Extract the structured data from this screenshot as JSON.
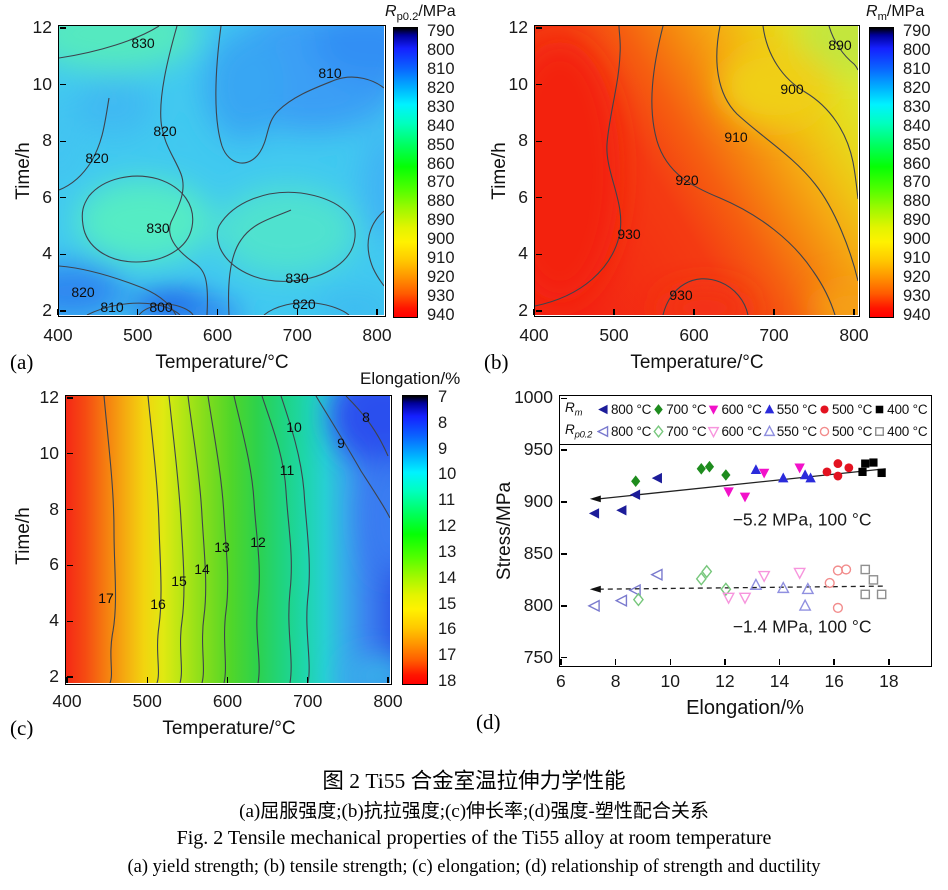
{
  "figure": {
    "caption_zh_title": "图 2  Ti55 合金室温拉伸力学性能",
    "caption_zh_sub": "(a)屈服强度;(b)抗拉强度;(c)伸长率;(d)强度-塑性配合关系",
    "caption_en_title": "Fig. 2  Tensile mechanical properties of the Ti55 alloy at room temperature",
    "caption_en_sub": "(a) yield strength; (b) tensile strength; (c) elongation; (d) relationship of strength and ductility"
  },
  "chart_data": [
    {
      "id": "a",
      "type": "heatmap",
      "panel_label": "(a)",
      "xlabel": "Temperature/°C",
      "ylabel": "Time/h",
      "colorbar_title": {
        "symbol": "R",
        "subscript": "p0.2",
        "unit": "/MPa"
      },
      "xlim": [
        400,
        800
      ],
      "ylim": [
        2,
        12
      ],
      "xticks": [
        400,
        500,
        600,
        700,
        800
      ],
      "yticks": [
        2,
        4,
        6,
        8,
        10,
        12
      ],
      "colorbar_ticks": [
        790,
        800,
        810,
        820,
        830,
        840,
        850,
        860,
        870,
        880,
        890,
        900,
        910,
        920,
        930,
        940
      ],
      "contour_labels": [
        {
          "v": "830",
          "x": 85,
          "y": 18
        },
        {
          "v": "810",
          "x": 272,
          "y": 48
        },
        {
          "v": "820",
          "x": 107,
          "y": 106
        },
        {
          "v": "820",
          "x": 39,
          "y": 133
        },
        {
          "v": "830",
          "x": 100,
          "y": 203
        },
        {
          "v": "830",
          "x": 239,
          "y": 253
        },
        {
          "v": "820",
          "x": 25,
          "y": 267
        },
        {
          "v": "810",
          "x": 54,
          "y": 282
        },
        {
          "v": "800",
          "x": 103,
          "y": 282
        },
        {
          "v": "820",
          "x": 246,
          "y": 279
        }
      ]
    },
    {
      "id": "b",
      "type": "heatmap",
      "panel_label": "(b)",
      "xlabel": "Temperature/°C",
      "ylabel": "Time/h",
      "colorbar_title": {
        "symbol": "R",
        "subscript": "m",
        "unit": "/MPa"
      },
      "xlim": [
        400,
        800
      ],
      "ylim": [
        2,
        12
      ],
      "xticks": [
        400,
        500,
        600,
        700,
        800
      ],
      "yticks": [
        2,
        4,
        6,
        8,
        10,
        12
      ],
      "colorbar_ticks": [
        790,
        800,
        810,
        820,
        830,
        840,
        850,
        860,
        870,
        880,
        890,
        900,
        910,
        920,
        930,
        940
      ],
      "contour_labels": [
        {
          "v": "890",
          "x": 306,
          "y": 20
        },
        {
          "v": "900",
          "x": 258,
          "y": 64
        },
        {
          "v": "910",
          "x": 202,
          "y": 112
        },
        {
          "v": "920",
          "x": 153,
          "y": 155
        },
        {
          "v": "930",
          "x": 95,
          "y": 209
        },
        {
          "v": "930",
          "x": 147,
          "y": 270
        }
      ]
    },
    {
      "id": "c",
      "type": "heatmap",
      "panel_label": "(c)",
      "xlabel": "Temperature/°C",
      "ylabel": "Time/h",
      "colorbar_title": {
        "symbol": "",
        "subscript": "",
        "unit": "Elongation/%"
      },
      "xlim": [
        400,
        800
      ],
      "ylim": [
        2,
        12
      ],
      "xticks": [
        400,
        500,
        600,
        700,
        800
      ],
      "yticks": [
        2,
        4,
        6,
        8,
        10,
        12
      ],
      "colorbar_ticks": [
        7,
        8,
        9,
        10,
        11,
        12,
        13,
        14,
        15,
        16,
        17,
        18
      ],
      "contour_labels": [
        {
          "v": "8",
          "x": 301,
          "y": 22
        },
        {
          "v": "10",
          "x": 229,
          "y": 32
        },
        {
          "v": "9",
          "x": 276,
          "y": 48
        },
        {
          "v": "11",
          "x": 222,
          "y": 75
        },
        {
          "v": "12",
          "x": 193,
          "y": 147
        },
        {
          "v": "13",
          "x": 157,
          "y": 152
        },
        {
          "v": "14",
          "x": 137,
          "y": 174
        },
        {
          "v": "15",
          "x": 114,
          "y": 186
        },
        {
          "v": "16",
          "x": 93,
          "y": 209
        },
        {
          "v": "17",
          "x": 41,
          "y": 203
        }
      ]
    },
    {
      "id": "d",
      "type": "scatter",
      "panel_label": "(d)",
      "xlabel": "Elongation/%",
      "ylabel": "Stress/MPa",
      "xlim": [
        6,
        18
      ],
      "ylim": [
        750,
        1000
      ],
      "xticks": [
        6,
        8,
        10,
        12,
        14,
        16,
        18
      ],
      "yticks": [
        750,
        800,
        850,
        900,
        950,
        1000
      ],
      "legend": {
        "rm_symbol": {
          "symbol": "R",
          "subscript": "m"
        },
        "rp_symbol": {
          "symbol": "R",
          "subscript": "p0.2"
        }
      },
      "series_rm": [
        {
          "label": "800 °C",
          "shape": "tri-left",
          "color": "#1c1c99",
          "filled": true,
          "points": [
            [
              7.2,
              890
            ],
            [
              8.2,
              893
            ],
            [
              8.7,
              908
            ],
            [
              9.5,
              924
            ]
          ]
        },
        {
          "label": "700 °C",
          "shape": "diamond",
          "color": "#1e8c1e",
          "filled": true,
          "points": [
            [
              8.7,
              921
            ],
            [
              11.1,
              933
            ],
            [
              11.4,
              935
            ],
            [
              12.0,
              927
            ]
          ]
        },
        {
          "label": "600 °C",
          "shape": "tri-down",
          "color": "#f211c9",
          "filled": true,
          "points": [
            [
              12.1,
              911
            ],
            [
              12.7,
              906
            ],
            [
              13.4,
              929
            ],
            [
              14.7,
              934
            ]
          ]
        },
        {
          "label": "550 °C",
          "shape": "tri-up",
          "color": "#2b2bdb",
          "filled": true,
          "points": [
            [
              13.1,
              932
            ],
            [
              14.1,
              924
            ],
            [
              14.9,
              927
            ],
            [
              15.1,
              924
            ]
          ]
        },
        {
          "label": "500 °C",
          "shape": "circle",
          "color": "#e31220",
          "filled": true,
          "points": [
            [
              15.7,
              930
            ],
            [
              16.1,
              938
            ],
            [
              16.1,
              926
            ],
            [
              16.5,
              934
            ]
          ]
        },
        {
          "label": "400 °C",
          "shape": "square",
          "color": "#000000",
          "filled": true,
          "points": [
            [
              17.1,
              938
            ],
            [
              17.4,
              939
            ],
            [
              17.0,
              930
            ],
            [
              17.7,
              929
            ]
          ]
        }
      ],
      "series_rp": [
        {
          "label": "800 °C",
          "shape": "tri-left",
          "color": "#7a7ace",
          "filled": false,
          "points": [
            [
              7.2,
              801
            ],
            [
              8.2,
              806
            ],
            [
              8.7,
              816
            ],
            [
              9.5,
              831
            ]
          ]
        },
        {
          "label": "700 °C",
          "shape": "diamond",
          "color": "#77c77c",
          "filled": false,
          "points": [
            [
              8.8,
              807
            ],
            [
              11.1,
              827
            ],
            [
              11.3,
              834
            ],
            [
              12.0,
              817
            ]
          ]
        },
        {
          "label": "600 °C",
          "shape": "tri-down",
          "color": "#f795dd",
          "filled": false,
          "points": [
            [
              12.1,
              809
            ],
            [
              12.7,
              809
            ],
            [
              13.4,
              830
            ],
            [
              14.7,
              833
            ]
          ]
        },
        {
          "label": "550 °C",
          "shape": "tri-up",
          "color": "#9090e0",
          "filled": false,
          "points": [
            [
              13.1,
              821
            ],
            [
              14.1,
              818
            ],
            [
              15.0,
              817
            ],
            [
              14.9,
              801
            ]
          ]
        },
        {
          "label": "500 °C",
          "shape": "circle",
          "color": "#f28c8c",
          "filled": false,
          "points": [
            [
              15.8,
              823
            ],
            [
              16.1,
              835
            ],
            [
              16.4,
              836
            ],
            [
              16.1,
              799
            ]
          ]
        },
        {
          "label": "400 °C",
          "shape": "square",
          "color": "#8f8f8f",
          "filled": false,
          "points": [
            [
              17.1,
              836
            ],
            [
              17.4,
              826
            ],
            [
              17.1,
              812
            ],
            [
              17.7,
              812
            ]
          ]
        }
      ],
      "trend_lines": [
        {
          "style": "solid",
          "points": [
            [
              7.35,
              904
            ],
            [
              17.85,
              933
            ]
          ]
        },
        {
          "style": "dashed",
          "points": [
            [
              7.35,
              817
            ],
            [
              17.85,
              820
            ]
          ]
        }
      ],
      "annotations": [
        {
          "text": "−5.2 MPa, 100 °C",
          "x": 12.25,
          "y": 884
        },
        {
          "text": "−1.4 MPa, 100 °C",
          "x": 12.25,
          "y": 781
        }
      ]
    }
  ]
}
